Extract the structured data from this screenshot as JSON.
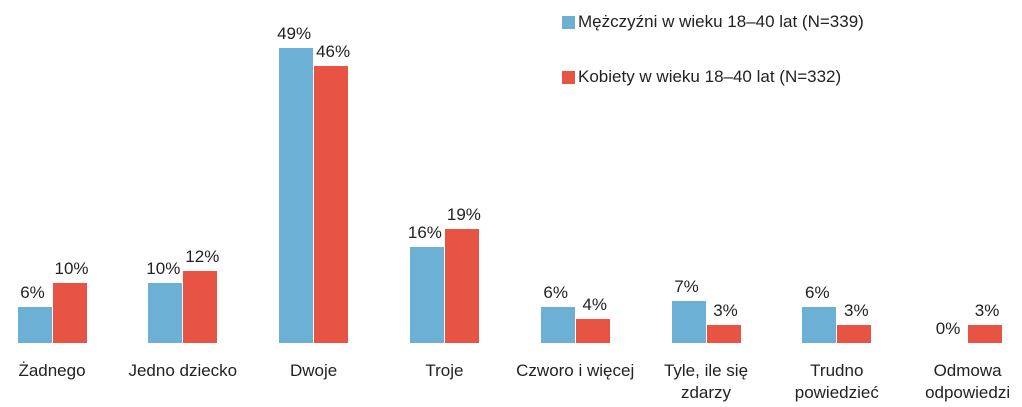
{
  "chart_data": {
    "type": "bar",
    "categories": [
      "Żadnego",
      "Jedno dziecko",
      "Dwoje",
      "Troje",
      "Czworo i więcej",
      "Tyle, ile się zdarzy",
      "Trudno powiedzieć",
      "Odmowa odpowiedzi"
    ],
    "series": [
      {
        "name": "Mężczyźni w wieku 18–40 lat (N=339)",
        "color": "#6cb1d5",
        "values": [
          6,
          10,
          49,
          16,
          6,
          7,
          6,
          0
        ],
        "value_labels": [
          "6%",
          "10%",
          "49%",
          "16%",
          "6%",
          "7%",
          "6%",
          "0%"
        ]
      },
      {
        "name": "Kobiety w wieku 18–40 lat (N=332)",
        "color": "#e85444",
        "values": [
          10,
          12,
          46,
          19,
          4,
          3,
          3,
          3
        ],
        "value_labels": [
          "10%",
          "12%",
          "46%",
          "19%",
          "4%",
          "3%",
          "3%",
          "3%"
        ]
      }
    ],
    "legend": "top-right"
  }
}
